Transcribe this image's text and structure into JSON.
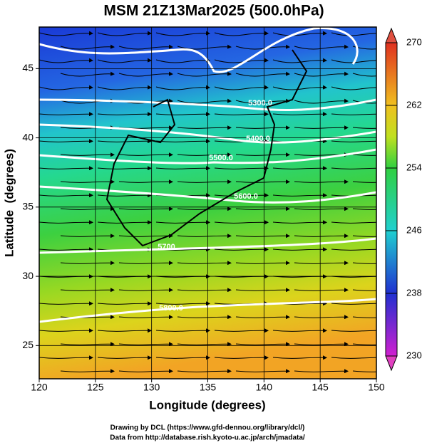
{
  "title": "MSM 21Z13Mar2025 (500.0hPa)",
  "x_axis": {
    "label": "Longitude (degrees)",
    "lim": [
      120,
      150
    ],
    "ticks": [
      120,
      125,
      130,
      135,
      140,
      145,
      150
    ]
  },
  "y_axis": {
    "label": "Latitude  (degrees)",
    "lim": [
      22.6,
      48.0
    ],
    "ticks": [
      25,
      30,
      35,
      40,
      45
    ]
  },
  "colorbar": {
    "lim": [
      230,
      270
    ],
    "ticks": [
      230,
      238,
      246,
      254,
      262,
      270
    ]
  },
  "contour_labels": [
    "5300.0",
    "5400.0",
    "5500.0",
    "5600.0",
    "5700.",
    "5800.0"
  ],
  "footer": [
    "Drawing by DCL (https://www.gfd-dennou.org/library/dcl/)",
    "Data from http://database.rish.kyoto-u.ac.jp/arch/jmadata/"
  ]
}
